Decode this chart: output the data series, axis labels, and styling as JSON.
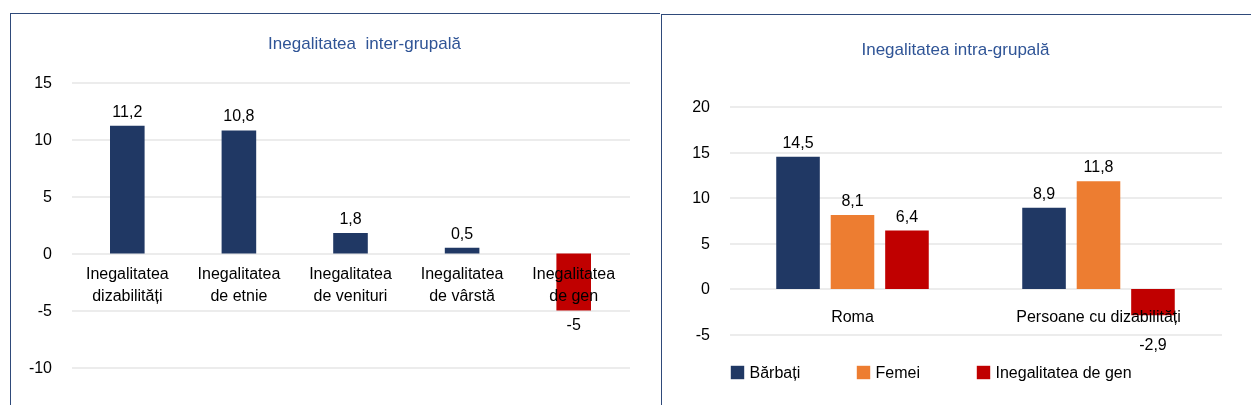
{
  "chart_data": [
    {
      "type": "bar",
      "title": "Inegalitatea  inter-grupală",
      "categories": [
        "Inegalitatea dizabilități",
        "Inegalitatea de etnie",
        "Inegalitatea de venituri",
        "Inegalitatea de vârstă",
        "Inegalitatea de gen"
      ],
      "values": [
        11.2,
        10.8,
        1.8,
        0.5,
        -5
      ],
      "colors": [
        "#203864",
        "#203864",
        "#203864",
        "#203864",
        "#c00000"
      ],
      "value_labels": [
        "11,2",
        "10,8",
        "1,8",
        "0,5",
        "-5"
      ],
      "ylim": [
        -10,
        15
      ],
      "yticks": [
        -10,
        -5,
        0,
        5,
        10,
        15
      ],
      "grid": "y"
    },
    {
      "type": "bar",
      "title": "Inegalitatea intra-grupală",
      "categories": [
        "Roma",
        "Persoane cu dizabilități"
      ],
      "series": [
        {
          "name": "Bărbați",
          "color": "#203864",
          "values": [
            14.5,
            8.9
          ],
          "value_labels": [
            "14,5",
            "8,9"
          ]
        },
        {
          "name": "Femei",
          "color": "#ed7d31",
          "values": [
            8.1,
            11.8
          ],
          "value_labels": [
            "8,1",
            "11,8"
          ]
        },
        {
          "name": "Inegalitatea de gen",
          "color": "#c00000",
          "values": [
            6.4,
            -2.9
          ],
          "value_labels": [
            "6,4",
            "-2,9"
          ]
        }
      ],
      "ylim": [
        -5,
        20
      ],
      "yticks": [
        -5,
        0,
        5,
        10,
        15,
        20
      ],
      "grid": "y",
      "legend": "bottom"
    }
  ]
}
